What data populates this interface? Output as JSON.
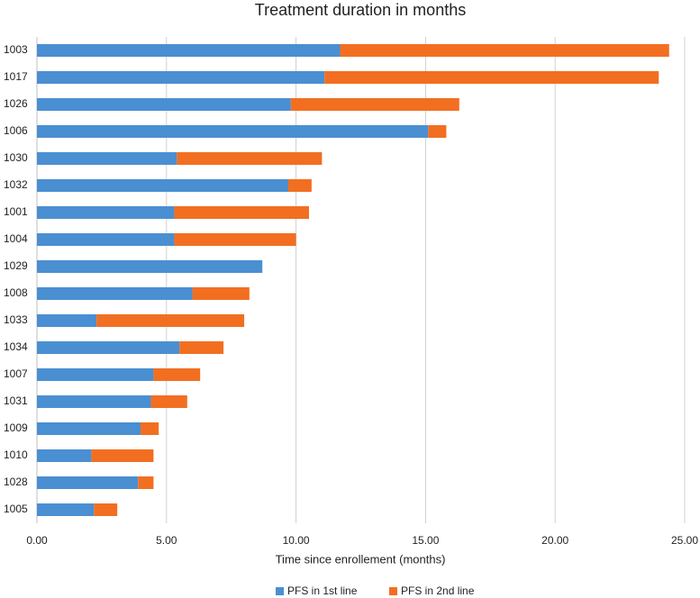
{
  "chart_data": {
    "type": "stacked-bar-horizontal",
    "title": "Treatment duration in months",
    "x_label": "Time since enrollement (months)",
    "categories": [
      "1003",
      "1017",
      "1026",
      "1006",
      "1030",
      "1032",
      "1001",
      "1004",
      "1029",
      "1008",
      "1033",
      "1034",
      "1007",
      "1031",
      "1009",
      "1010",
      "1028",
      "1005"
    ],
    "series": [
      {
        "name": "PFS in 1st line",
        "color": "#4a8fd2",
        "values": [
          11.7,
          11.1,
          9.8,
          15.1,
          5.4,
          9.7,
          5.3,
          5.3,
          8.7,
          6.0,
          2.3,
          5.5,
          4.5,
          4.4,
          4.0,
          2.1,
          3.9,
          2.2
        ]
      },
      {
        "name": "PFS in 2nd line",
        "color": "#f26f21",
        "values": [
          12.7,
          12.9,
          6.5,
          0.7,
          5.6,
          0.9,
          5.2,
          4.7,
          0,
          2.2,
          5.7,
          1.7,
          1.8,
          1.4,
          0.7,
          2.4,
          0.6,
          0.9
        ]
      }
    ],
    "xlim": [
      0,
      25
    ],
    "xticks": [
      {
        "value": 0,
        "label": "0.00"
      },
      {
        "value": 5,
        "label": "5.00"
      },
      {
        "value": 10,
        "label": "10.00"
      },
      {
        "value": 15,
        "label": "15.00"
      },
      {
        "value": 20,
        "label": "20.00"
      },
      {
        "value": 25,
        "label": "25.00"
      }
    ],
    "grid": true,
    "legend": "bottom"
  }
}
